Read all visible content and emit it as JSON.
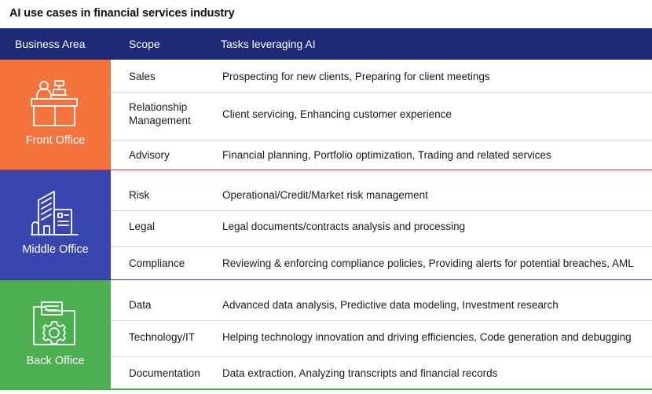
{
  "title": "AI use cases in financial services industry",
  "header": {
    "business_area": "Business Area",
    "scope": "Scope",
    "tasks": "Tasks leveraging AI"
  },
  "colors": {
    "header": "#1e2a78",
    "front_office": "#f5743e",
    "middle_office": "#3946b0",
    "back_office": "#4caf50"
  },
  "groups": {
    "front": {
      "name": "Front Office",
      "icon": "reception-desk-icon",
      "rows": [
        {
          "scope": "Sales",
          "task": "Prospecting for new clients, Preparing for client meetings"
        },
        {
          "scope": "Relationship\nManagement",
          "task": "Client servicing, Enhancing customer experience"
        },
        {
          "scope": "Advisory",
          "task": "Financial planning, Portfolio optimization, Trading and related services"
        }
      ]
    },
    "middle": {
      "name": "Middle Office",
      "icon": "office-building-icon",
      "rows": [
        {
          "scope": "Risk",
          "task": "Operational/Credit/Market risk management"
        },
        {
          "scope": "Legal",
          "task": "Legal documents/contracts analysis and processing"
        },
        {
          "scope": "Compliance",
          "task": "Reviewing & enforcing compliance policies, Providing alerts for potential breaches, AML"
        }
      ]
    },
    "back": {
      "name": "Back Office",
      "icon": "folder-gear-icon",
      "rows": [
        {
          "scope": "Data",
          "task": "Advanced data analysis, Predictive data modeling, Investment research"
        },
        {
          "scope": "Technology/IT",
          "task": "Helping technology innovation and driving efficiencies, Code generation and debugging"
        },
        {
          "scope": "Documentation",
          "task": "Data extraction, Analyzing transcripts and financial records"
        }
      ]
    }
  }
}
